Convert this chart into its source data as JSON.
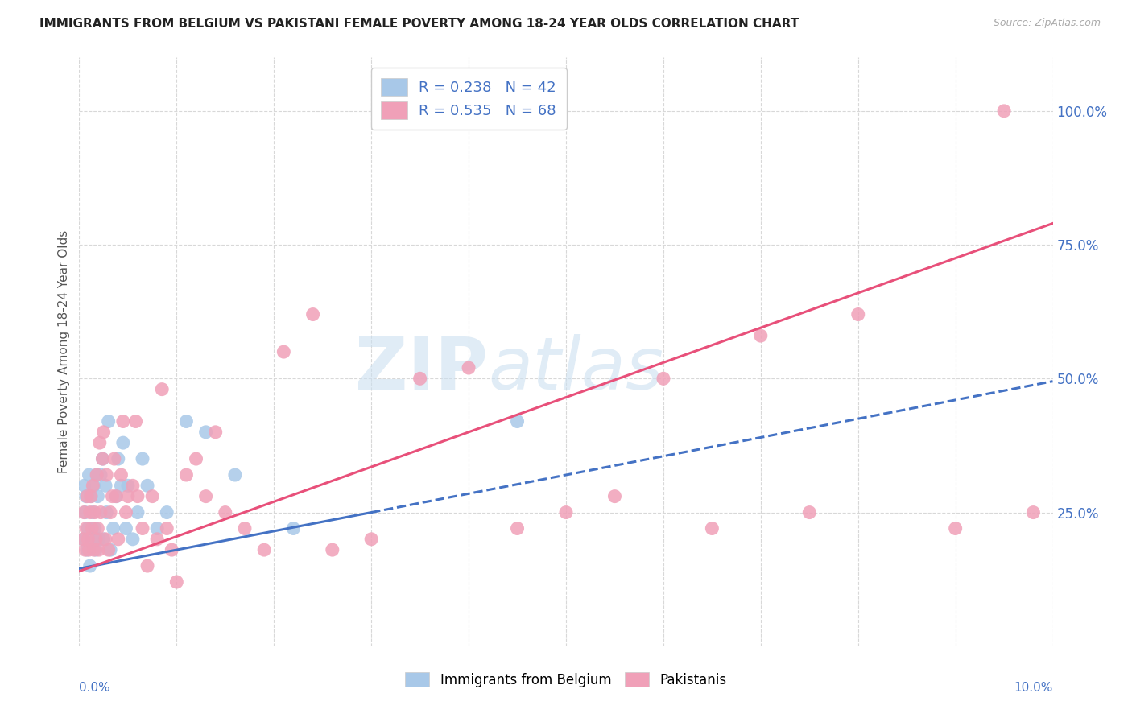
{
  "title": "IMMIGRANTS FROM BELGIUM VS PAKISTANI FEMALE POVERTY AMONG 18-24 YEAR OLDS CORRELATION CHART",
  "source": "Source: ZipAtlas.com",
  "ylabel": "Female Poverty Among 18-24 Year Olds",
  "xlim": [
    0.0,
    10.0
  ],
  "ylim": [
    0.0,
    110.0
  ],
  "right_yticks": [
    25.0,
    50.0,
    75.0,
    100.0
  ],
  "right_yticklabels": [
    "25.0%",
    "50.0%",
    "75.0%",
    "100.0%"
  ],
  "bottom_xtick_left": "0.0%",
  "bottom_xtick_right": "10.0%",
  "gridline_color": "#d8d8d8",
  "background_color": "#ffffff",
  "watermark_text": "ZIPatlas",
  "watermark_color": "#cce0f0",
  "series": [
    {
      "name": "Immigrants from Belgium",
      "R": 0.238,
      "N": 42,
      "scatter_color": "#a8c8e8",
      "line_color": "#4472c4",
      "line_solid_xmax": 3.0,
      "x": [
        0.04,
        0.05,
        0.06,
        0.07,
        0.08,
        0.09,
        0.1,
        0.11,
        0.12,
        0.13,
        0.14,
        0.15,
        0.16,
        0.17,
        0.18,
        0.19,
        0.2,
        0.22,
        0.24,
        0.25,
        0.27,
        0.28,
        0.3,
        0.32,
        0.35,
        0.38,
        0.4,
        0.43,
        0.45,
        0.48,
        0.5,
        0.55,
        0.6,
        0.65,
        0.7,
        0.8,
        0.9,
        1.1,
        1.3,
        1.6,
        2.2,
        4.5
      ],
      "y": [
        20,
        30,
        25,
        28,
        18,
        22,
        32,
        15,
        28,
        20,
        25,
        30,
        22,
        18,
        32,
        28,
        20,
        32,
        35,
        20,
        30,
        25,
        42,
        18,
        22,
        28,
        35,
        30,
        38,
        22,
        30,
        20,
        25,
        35,
        30,
        22,
        25,
        42,
        40,
        32,
        22,
        42
      ]
    },
    {
      "name": "Pakistanis",
      "R": 0.535,
      "N": 68,
      "scatter_color": "#f0a0b8",
      "line_color": "#e8507a",
      "line_solid_xmax": 10.0,
      "x": [
        0.04,
        0.05,
        0.06,
        0.07,
        0.08,
        0.09,
        0.1,
        0.11,
        0.12,
        0.13,
        0.14,
        0.15,
        0.16,
        0.17,
        0.18,
        0.19,
        0.2,
        0.21,
        0.22,
        0.24,
        0.25,
        0.27,
        0.28,
        0.3,
        0.32,
        0.34,
        0.36,
        0.38,
        0.4,
        0.43,
        0.45,
        0.48,
        0.5,
        0.55,
        0.58,
        0.6,
        0.65,
        0.7,
        0.75,
        0.8,
        0.85,
        0.9,
        0.95,
        1.0,
        1.1,
        1.2,
        1.3,
        1.4,
        1.5,
        1.7,
        1.9,
        2.1,
        2.4,
        2.6,
        3.0,
        3.5,
        4.0,
        4.5,
        5.0,
        5.5,
        6.0,
        6.5,
        7.0,
        7.5,
        8.0,
        9.0,
        9.5,
        9.8
      ],
      "y": [
        20,
        25,
        18,
        22,
        28,
        20,
        18,
        25,
        28,
        22,
        30,
        18,
        25,
        20,
        32,
        22,
        18,
        38,
        25,
        35,
        40,
        20,
        32,
        18,
        25,
        28,
        35,
        28,
        20,
        32,
        42,
        25,
        28,
        30,
        42,
        28,
        22,
        15,
        28,
        20,
        48,
        22,
        18,
        12,
        32,
        35,
        28,
        40,
        25,
        22,
        18,
        55,
        62,
        18,
        20,
        50,
        52,
        22,
        25,
        28,
        50,
        22,
        58,
        25,
        62,
        22,
        100,
        25
      ]
    }
  ],
  "belgium_line_intercept": 14.5,
  "belgium_line_slope": 3.5,
  "pakistan_line_intercept": 14.0,
  "pakistan_line_slope": 6.5
}
